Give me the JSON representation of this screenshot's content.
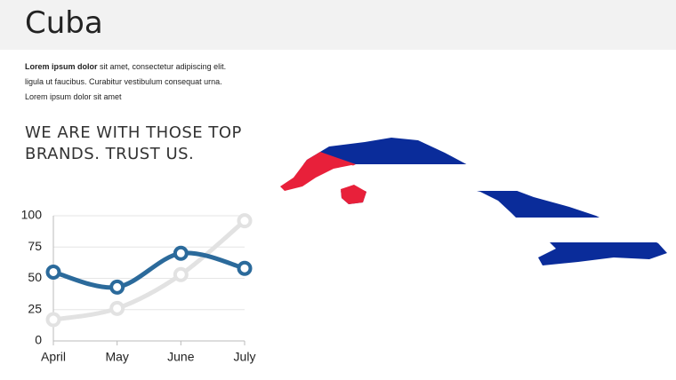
{
  "header": {
    "title": "Cuba"
  },
  "intro": {
    "bold": "Lorem ipsum dolor",
    "lines": [
      "sit amet, consectetur adipiscing elit.",
      "ligula ut faucibus. Curabitur vestibulum consequat urna.",
      "Lorem ipsum dolor sit amet"
    ]
  },
  "headline": [
    "WE ARE WITH THOSE TOP",
    "BRANDS. TRUST US."
  ],
  "chart_data": {
    "type": "line",
    "categories": [
      "April",
      "May",
      "June",
      "July"
    ],
    "series": [
      {
        "color": "#e2e2e2",
        "values": [
          17,
          26,
          53,
          96
        ]
      },
      {
        "color": "#2b6a9b",
        "values": [
          55,
          43,
          70,
          58
        ]
      }
    ],
    "ylim": [
      0,
      100
    ],
    "yticks": [
      0,
      25,
      50,
      75,
      100
    ],
    "grid": true,
    "smooth": true
  }
}
